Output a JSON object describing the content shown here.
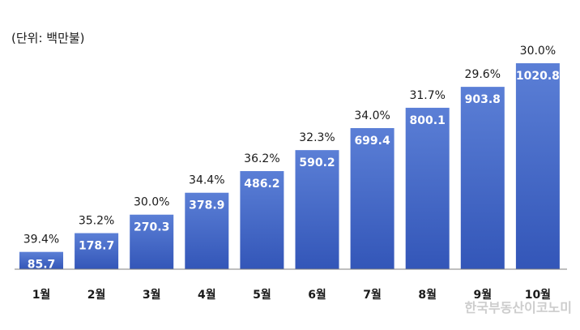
{
  "chart_data": {
    "type": "bar",
    "unit_label": "(단위: 백만불)",
    "categories": [
      "1월",
      "2월",
      "3월",
      "4월",
      "5월",
      "6월",
      "7월",
      "8월",
      "9월",
      "10월"
    ],
    "values": [
      85.7,
      178.7,
      270.3,
      378.9,
      486.2,
      590.2,
      699.4,
      800.1,
      903.8,
      1020.8
    ],
    "value_labels": [
      "85.7",
      "178.7",
      "270.3",
      "378.9",
      "486.2",
      "590.2",
      "699.4",
      "800.1",
      "903.8",
      "1020.8"
    ],
    "percent_labels": [
      "39.4%",
      "35.2%",
      "30.0%",
      "34.4%",
      "36.2%",
      "32.3%",
      "34.0%",
      "31.7%",
      "29.6%",
      "30.0%"
    ],
    "ylim": [
      0,
      1020.8
    ],
    "grid": false,
    "legend": "none",
    "bar_color_top": "#5b7fd6",
    "bar_color_bottom": "#3356b8",
    "axis_color": "#7f7f7f"
  },
  "watermark": "한국부동산이코노미"
}
